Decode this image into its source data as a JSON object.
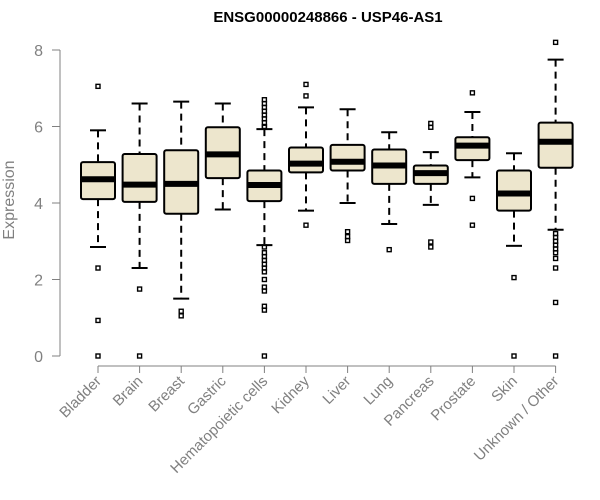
{
  "chart_data": {
    "type": "boxplot",
    "title": "ENSG00000248866 - USP46-AS1",
    "xlabel": "",
    "ylabel": "Expression",
    "ylim": [
      0,
      8
    ],
    "yticks": [
      0,
      2,
      4,
      6,
      8
    ],
    "colors": {
      "box_fill": "#ede6cd",
      "axis": "#808080",
      "title": "#000000"
    },
    "categories": [
      "Bladder",
      "Brain",
      "Breast",
      "Gastric",
      "Hematopoietic cells",
      "Kidney",
      "Liver",
      "Lung",
      "Pancreas",
      "Prostate",
      "Skin",
      "Unknown / Other"
    ],
    "boxes": [
      {
        "category": "Bladder",
        "whislo": 2.85,
        "q1": 4.1,
        "med": 4.62,
        "q3": 5.07,
        "whishi": 5.9,
        "fliers": [
          7.05,
          2.3,
          0.93,
          0.0
        ]
      },
      {
        "category": "Brain",
        "whislo": 2.3,
        "q1": 4.03,
        "med": 4.48,
        "q3": 5.28,
        "whishi": 6.6,
        "fliers": [
          1.75,
          0.0
        ]
      },
      {
        "category": "Breast",
        "whislo": 1.5,
        "q1": 3.72,
        "med": 4.5,
        "q3": 5.38,
        "whishi": 6.65,
        "fliers": [
          1.17,
          1.05
        ]
      },
      {
        "category": "Gastric",
        "whislo": 3.83,
        "q1": 4.65,
        "med": 5.27,
        "q3": 5.98,
        "whishi": 6.6,
        "fliers": []
      },
      {
        "category": "Hematopoietic cells",
        "whislo": 2.9,
        "q1": 4.05,
        "med": 4.47,
        "q3": 4.85,
        "whishi": 5.93,
        "fliers": [
          6.7,
          6.6,
          6.5,
          6.4,
          6.3,
          6.2,
          6.1,
          6.0,
          5.98,
          2.85,
          2.7,
          2.6,
          2.5,
          2.4,
          2.3,
          2.2,
          2.0,
          1.8,
          1.7,
          1.3,
          1.2,
          0.0
        ]
      },
      {
        "category": "Kidney",
        "whislo": 3.8,
        "q1": 4.8,
        "med": 5.03,
        "q3": 5.45,
        "whishi": 6.5,
        "fliers": [
          7.1,
          6.8,
          3.42
        ]
      },
      {
        "category": "Liver",
        "whislo": 4.0,
        "q1": 4.85,
        "med": 5.08,
        "q3": 5.52,
        "whishi": 6.45,
        "fliers": [
          3.25,
          3.12,
          3.02
        ]
      },
      {
        "category": "Lung",
        "whislo": 3.45,
        "q1": 4.5,
        "med": 4.98,
        "q3": 5.4,
        "whishi": 5.85,
        "fliers": [
          2.78
        ]
      },
      {
        "category": "Pancreas",
        "whislo": 3.95,
        "q1": 4.5,
        "med": 4.78,
        "q3": 4.98,
        "whishi": 5.33,
        "fliers": [
          6.08,
          5.98,
          2.98,
          2.85
        ]
      },
      {
        "category": "Prostate",
        "whislo": 4.67,
        "q1": 5.12,
        "med": 5.5,
        "q3": 5.72,
        "whishi": 6.38,
        "fliers": [
          6.88,
          4.12,
          3.42
        ]
      },
      {
        "category": "Skin",
        "whislo": 2.88,
        "q1": 3.8,
        "med": 4.25,
        "q3": 4.85,
        "whishi": 5.3,
        "fliers": [
          2.05,
          0.0
        ]
      },
      {
        "category": "Unknown / Other",
        "whislo": 3.3,
        "q1": 4.92,
        "med": 5.6,
        "q3": 6.1,
        "whishi": 7.75,
        "fliers": [
          8.2,
          3.2,
          3.1,
          3.0,
          2.9,
          2.8,
          2.7,
          2.55,
          2.3,
          1.4,
          0.0
        ]
      }
    ]
  }
}
